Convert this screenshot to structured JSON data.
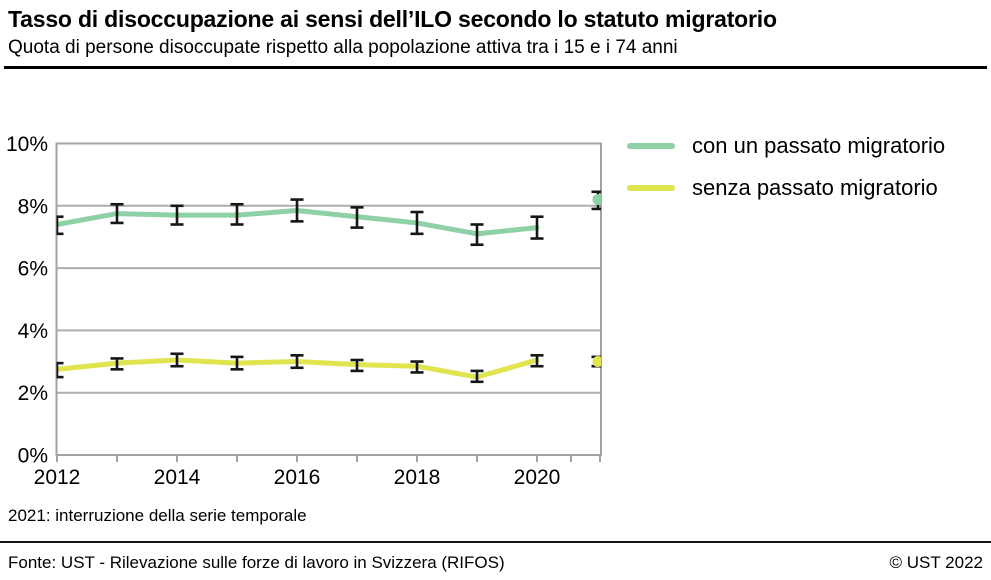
{
  "header": {
    "title": "Tasso di disoccupazione ai sensi dell’ILO secondo lo statuto migratorio",
    "subtitle": "Quota di persone disoccupate rispetto alla popolazione attiva tra i 15 e i 74 anni"
  },
  "note": "2021: interruzione della serie temporale",
  "footer": {
    "source": "Fonte: UST - Rilevazione sulle forze di lavoro in Svizzera (RIFOS)",
    "copyright": "© UST 2022"
  },
  "colors": {
    "series_migrant": "#8ed1a6",
    "series_non_migrant": "#e0e44e",
    "grid": "#adadad",
    "frame": "#a2a2a2",
    "error_bar": "#161616"
  },
  "chart_data": {
    "type": "line",
    "title": "Tasso di disoccupazione ai sensi dell’ILO secondo lo statuto migratorio",
    "ylabel": "",
    "unit": "%",
    "ylim": [
      0,
      10
    ],
    "grid": "horizontal",
    "legend_position": "right",
    "y_ticks": [
      {
        "value": 0,
        "label": "0%"
      },
      {
        "value": 2,
        "label": "2%"
      },
      {
        "value": 4,
        "label": "4%"
      },
      {
        "value": 6,
        "label": "6%"
      },
      {
        "value": 8,
        "label": "8%"
      },
      {
        "value": 10,
        "label": "10%"
      }
    ],
    "x_years": [
      2012,
      2013,
      2014,
      2015,
      2016,
      2017,
      2018,
      2019,
      2020
    ],
    "x_labeled_years": [
      "2012",
      "2014",
      "2016",
      "2018",
      "2020"
    ],
    "break_year": 2021,
    "series": [
      {
        "name": "con un passato migratorio",
        "color": "#8ed1a6",
        "values": [
          7.4,
          7.75,
          7.7,
          7.7,
          7.85,
          7.65,
          7.45,
          7.1,
          7.3
        ],
        "ci_low": [
          7.1,
          7.45,
          7.4,
          7.4,
          7.5,
          7.3,
          7.1,
          6.75,
          6.95
        ],
        "ci_high": [
          7.65,
          8.05,
          8.0,
          8.05,
          8.2,
          7.95,
          7.8,
          7.4,
          7.65
        ],
        "break_value": 8.2,
        "break_ci": [
          7.9,
          8.45
        ]
      },
      {
        "name": "senza passato migratorio",
        "color": "#e0e44e",
        "values": [
          2.75,
          2.95,
          3.05,
          2.95,
          3.0,
          2.9,
          2.85,
          2.5,
          3.05
        ],
        "ci_low": [
          2.5,
          2.75,
          2.85,
          2.75,
          2.8,
          2.7,
          2.65,
          2.35,
          2.85
        ],
        "ci_high": [
          2.95,
          3.1,
          3.25,
          3.15,
          3.2,
          3.05,
          3.0,
          2.7,
          3.2
        ],
        "break_value": 3.0,
        "break_ci": [
          2.85,
          3.15
        ]
      }
    ]
  }
}
